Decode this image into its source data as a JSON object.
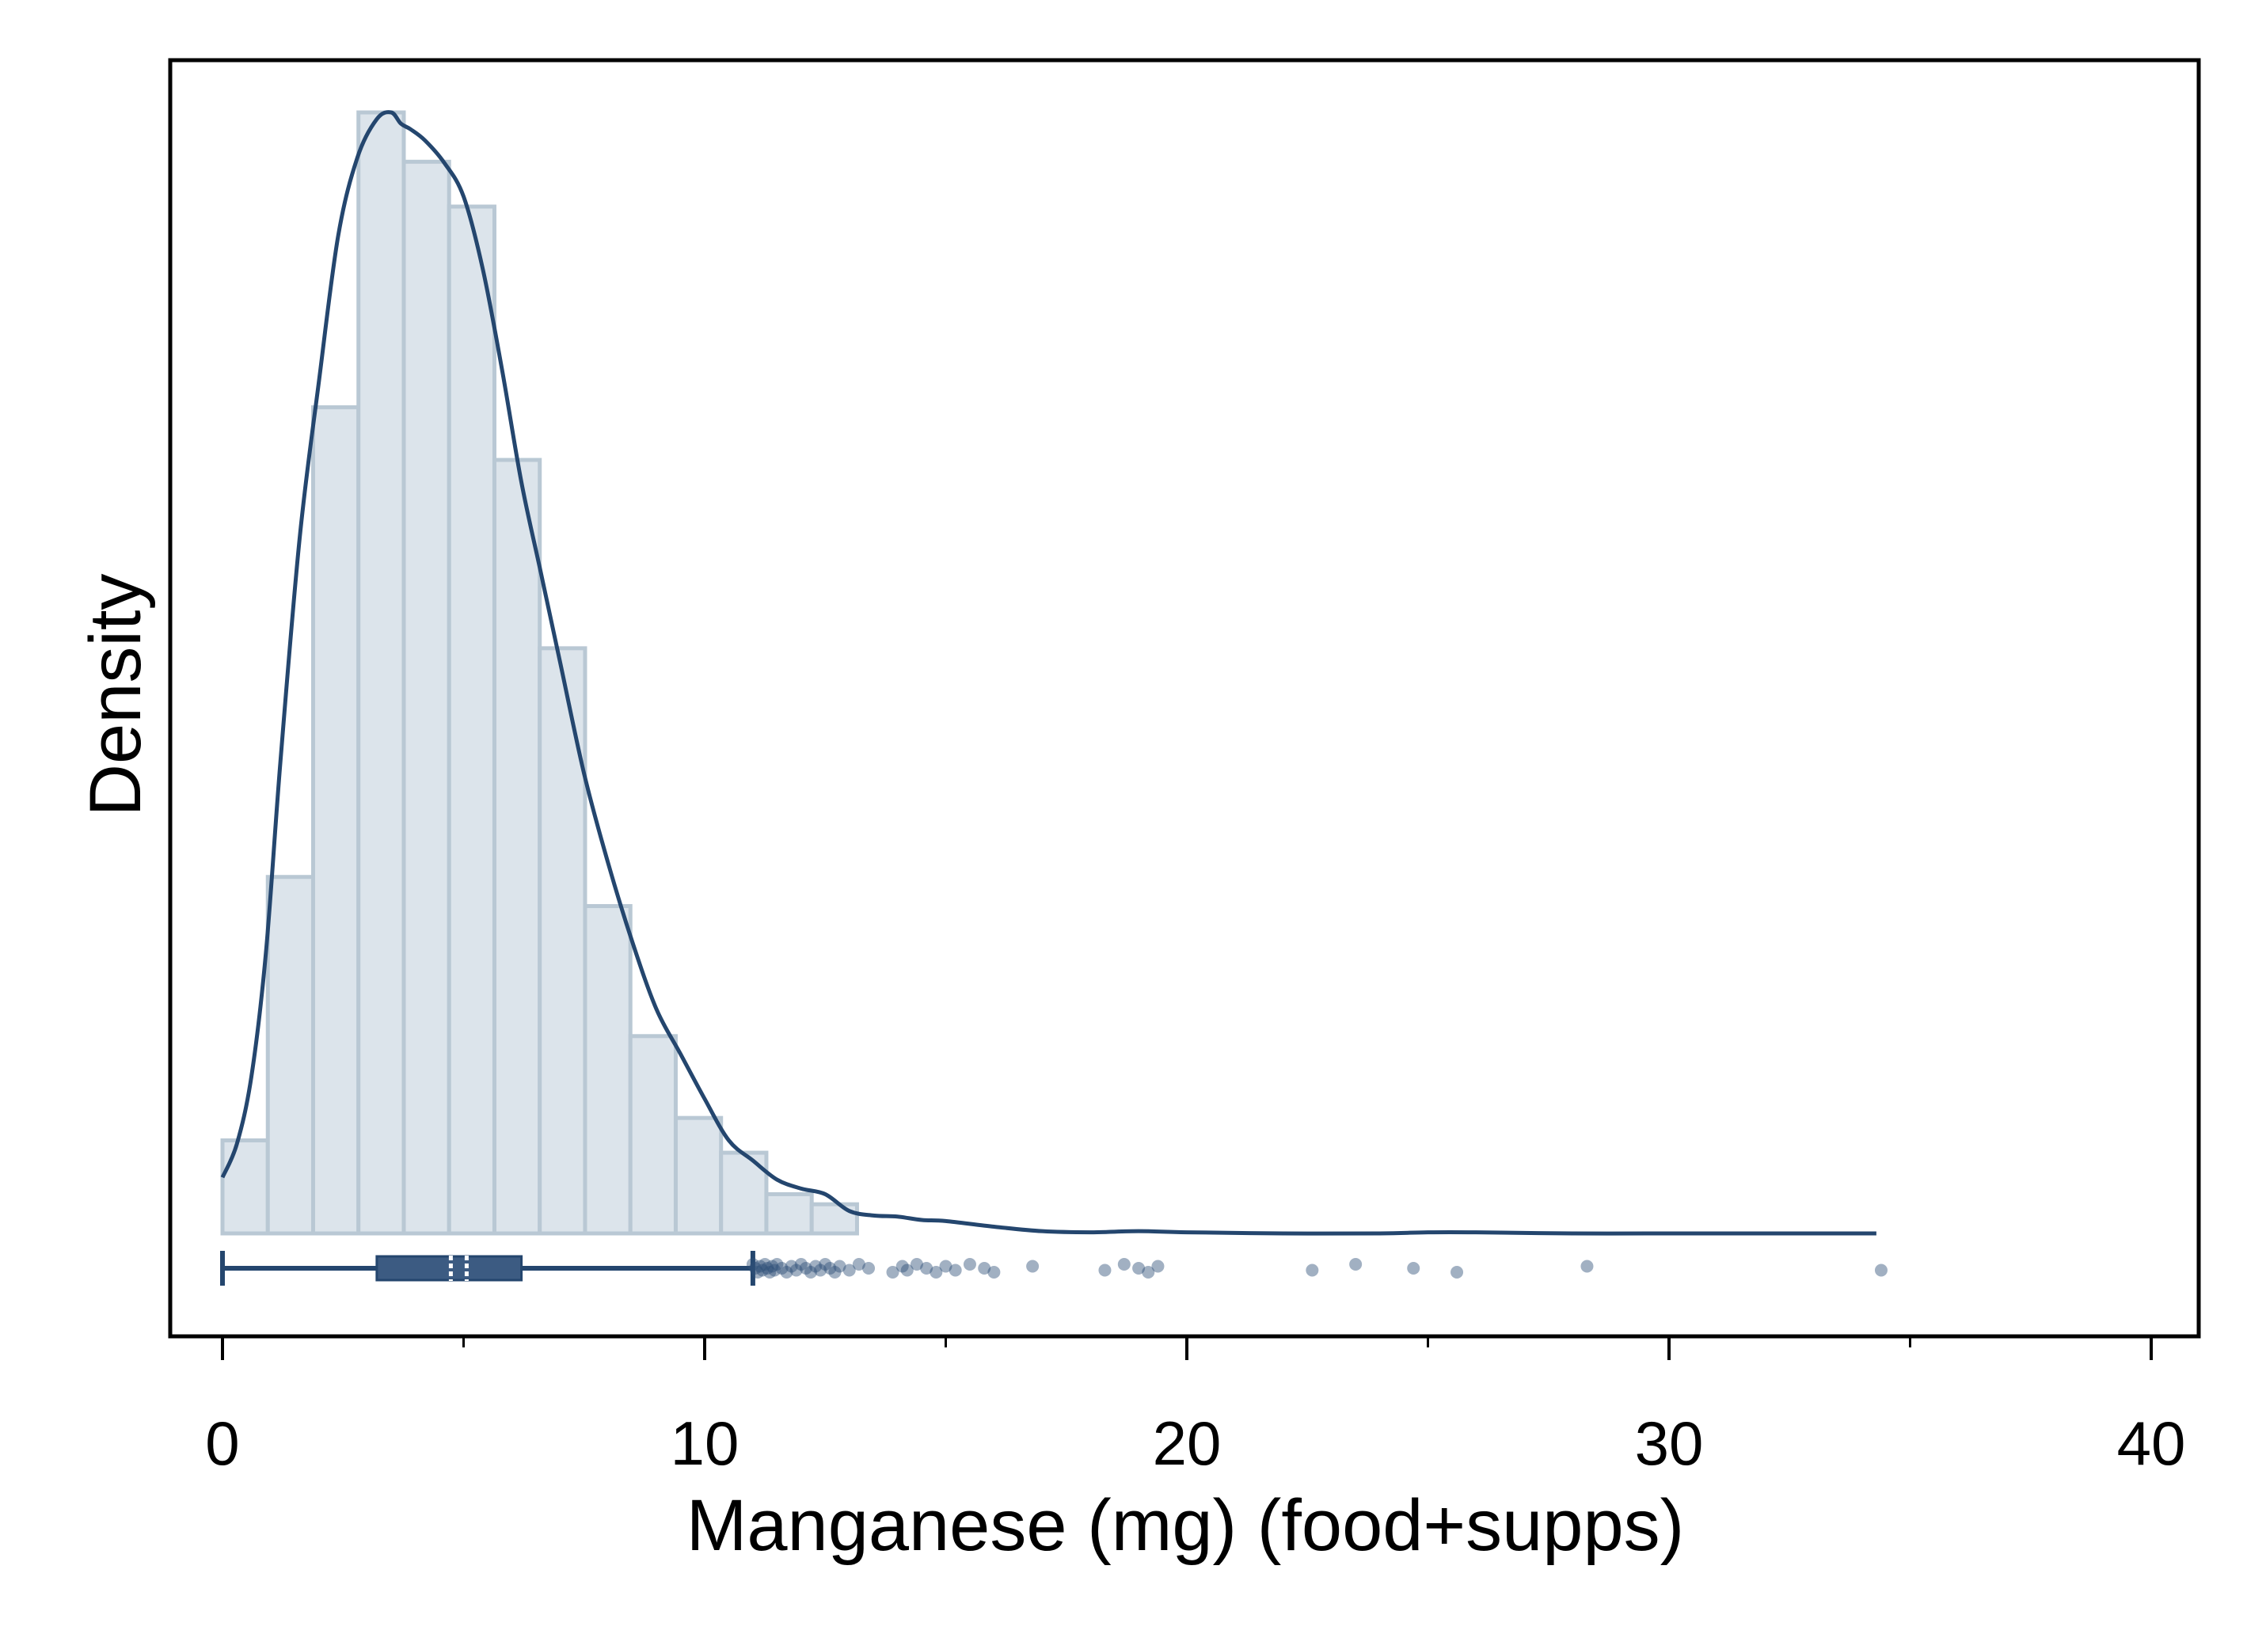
{
  "chart_data": {
    "type": "histogram",
    "xlabel": "Manganese (mg) (food+supps)",
    "ylabel": "Density",
    "xlim": [
      0,
      40
    ],
    "xticks": [
      0,
      10,
      20,
      30,
      40
    ],
    "y_axis_ticks_shown": false,
    "grid": false,
    "legend": "none",
    "colors": {
      "bar_fill": "#dce4eb",
      "bar_edge": "#b9c8d4",
      "line": "#24466e",
      "box_fill": "#3c5b82",
      "outlier": "#2f5077",
      "frame": "#000000",
      "plot_bg": "#ffffff"
    },
    "histogram": {
      "bin_width": 0.94,
      "bin_starts": [
        0,
        0.94,
        1.88,
        2.82,
        3.76,
        4.7,
        5.64,
        6.58,
        7.52,
        8.46,
        9.4,
        10.34,
        11.28,
        12.22,
        13.16,
        14.1,
        15.04,
        16.0,
        16.9
      ],
      "relative_heights": [
        0.083,
        0.318,
        0.737,
        1.0,
        0.956,
        0.916,
        0.69,
        0.522,
        0.292,
        0.176,
        0.103,
        0.072,
        0.035,
        0.026,
        0.0,
        0.0,
        0.0,
        0.0,
        0.0
      ]
    },
    "density_curve": {
      "x": [
        0,
        0.3,
        0.6,
        0.9,
        1.2,
        1.6,
        2.0,
        2.4,
        2.8,
        3.2,
        3.5,
        3.7,
        3.9,
        4.2,
        4.6,
        5.0,
        5.4,
        5.8,
        6.2,
        6.6,
        7.0,
        7.5,
        8.0,
        8.5,
        9.0,
        9.5,
        10.0,
        10.5,
        11.0,
        11.5,
        12.0,
        12.5,
        13.0,
        13.5,
        14.0,
        14.5,
        15.0,
        16.0,
        17.0,
        18.0,
        19.0,
        20.0,
        22.0,
        24.0,
        25.0,
        26.0,
        28.0,
        30.0,
        32.0,
        34.3
      ],
      "relative_density": [
        0.05,
        0.08,
        0.14,
        0.25,
        0.42,
        0.62,
        0.76,
        0.89,
        0.96,
        0.994,
        1.0,
        0.99,
        0.985,
        0.975,
        0.955,
        0.925,
        0.86,
        0.77,
        0.67,
        0.59,
        0.51,
        0.41,
        0.33,
        0.26,
        0.2,
        0.16,
        0.12,
        0.083,
        0.065,
        0.048,
        0.04,
        0.035,
        0.02,
        0.016,
        0.015,
        0.012,
        0.011,
        0.006,
        0.002,
        0.001,
        0.002,
        0.001,
        0.0,
        0.0,
        0.001,
        0.001,
        0.0,
        0.0,
        0.0,
        0.0
      ]
    },
    "boxplot": {
      "whisker_low": 0,
      "q1": 3.2,
      "median": 4.9,
      "q3": 6.2,
      "whisker_high": 11.0,
      "outliers": [
        11.0,
        11.05,
        11.1,
        11.15,
        11.2,
        11.25,
        11.3,
        11.35,
        11.4,
        11.45,
        11.5,
        11.6,
        11.7,
        11.8,
        11.9,
        12.0,
        12.1,
        12.2,
        12.3,
        12.4,
        12.5,
        12.6,
        12.7,
        12.8,
        13.0,
        13.2,
        13.4,
        13.9,
        14.1,
        14.2,
        14.4,
        14.6,
        14.8,
        15.0,
        15.2,
        15.5,
        15.8,
        16.0,
        16.8,
        18.3,
        18.7,
        19.0,
        19.2,
        19.4,
        22.6,
        23.5,
        24.7,
        25.6,
        28.3,
        34.4
      ]
    }
  }
}
